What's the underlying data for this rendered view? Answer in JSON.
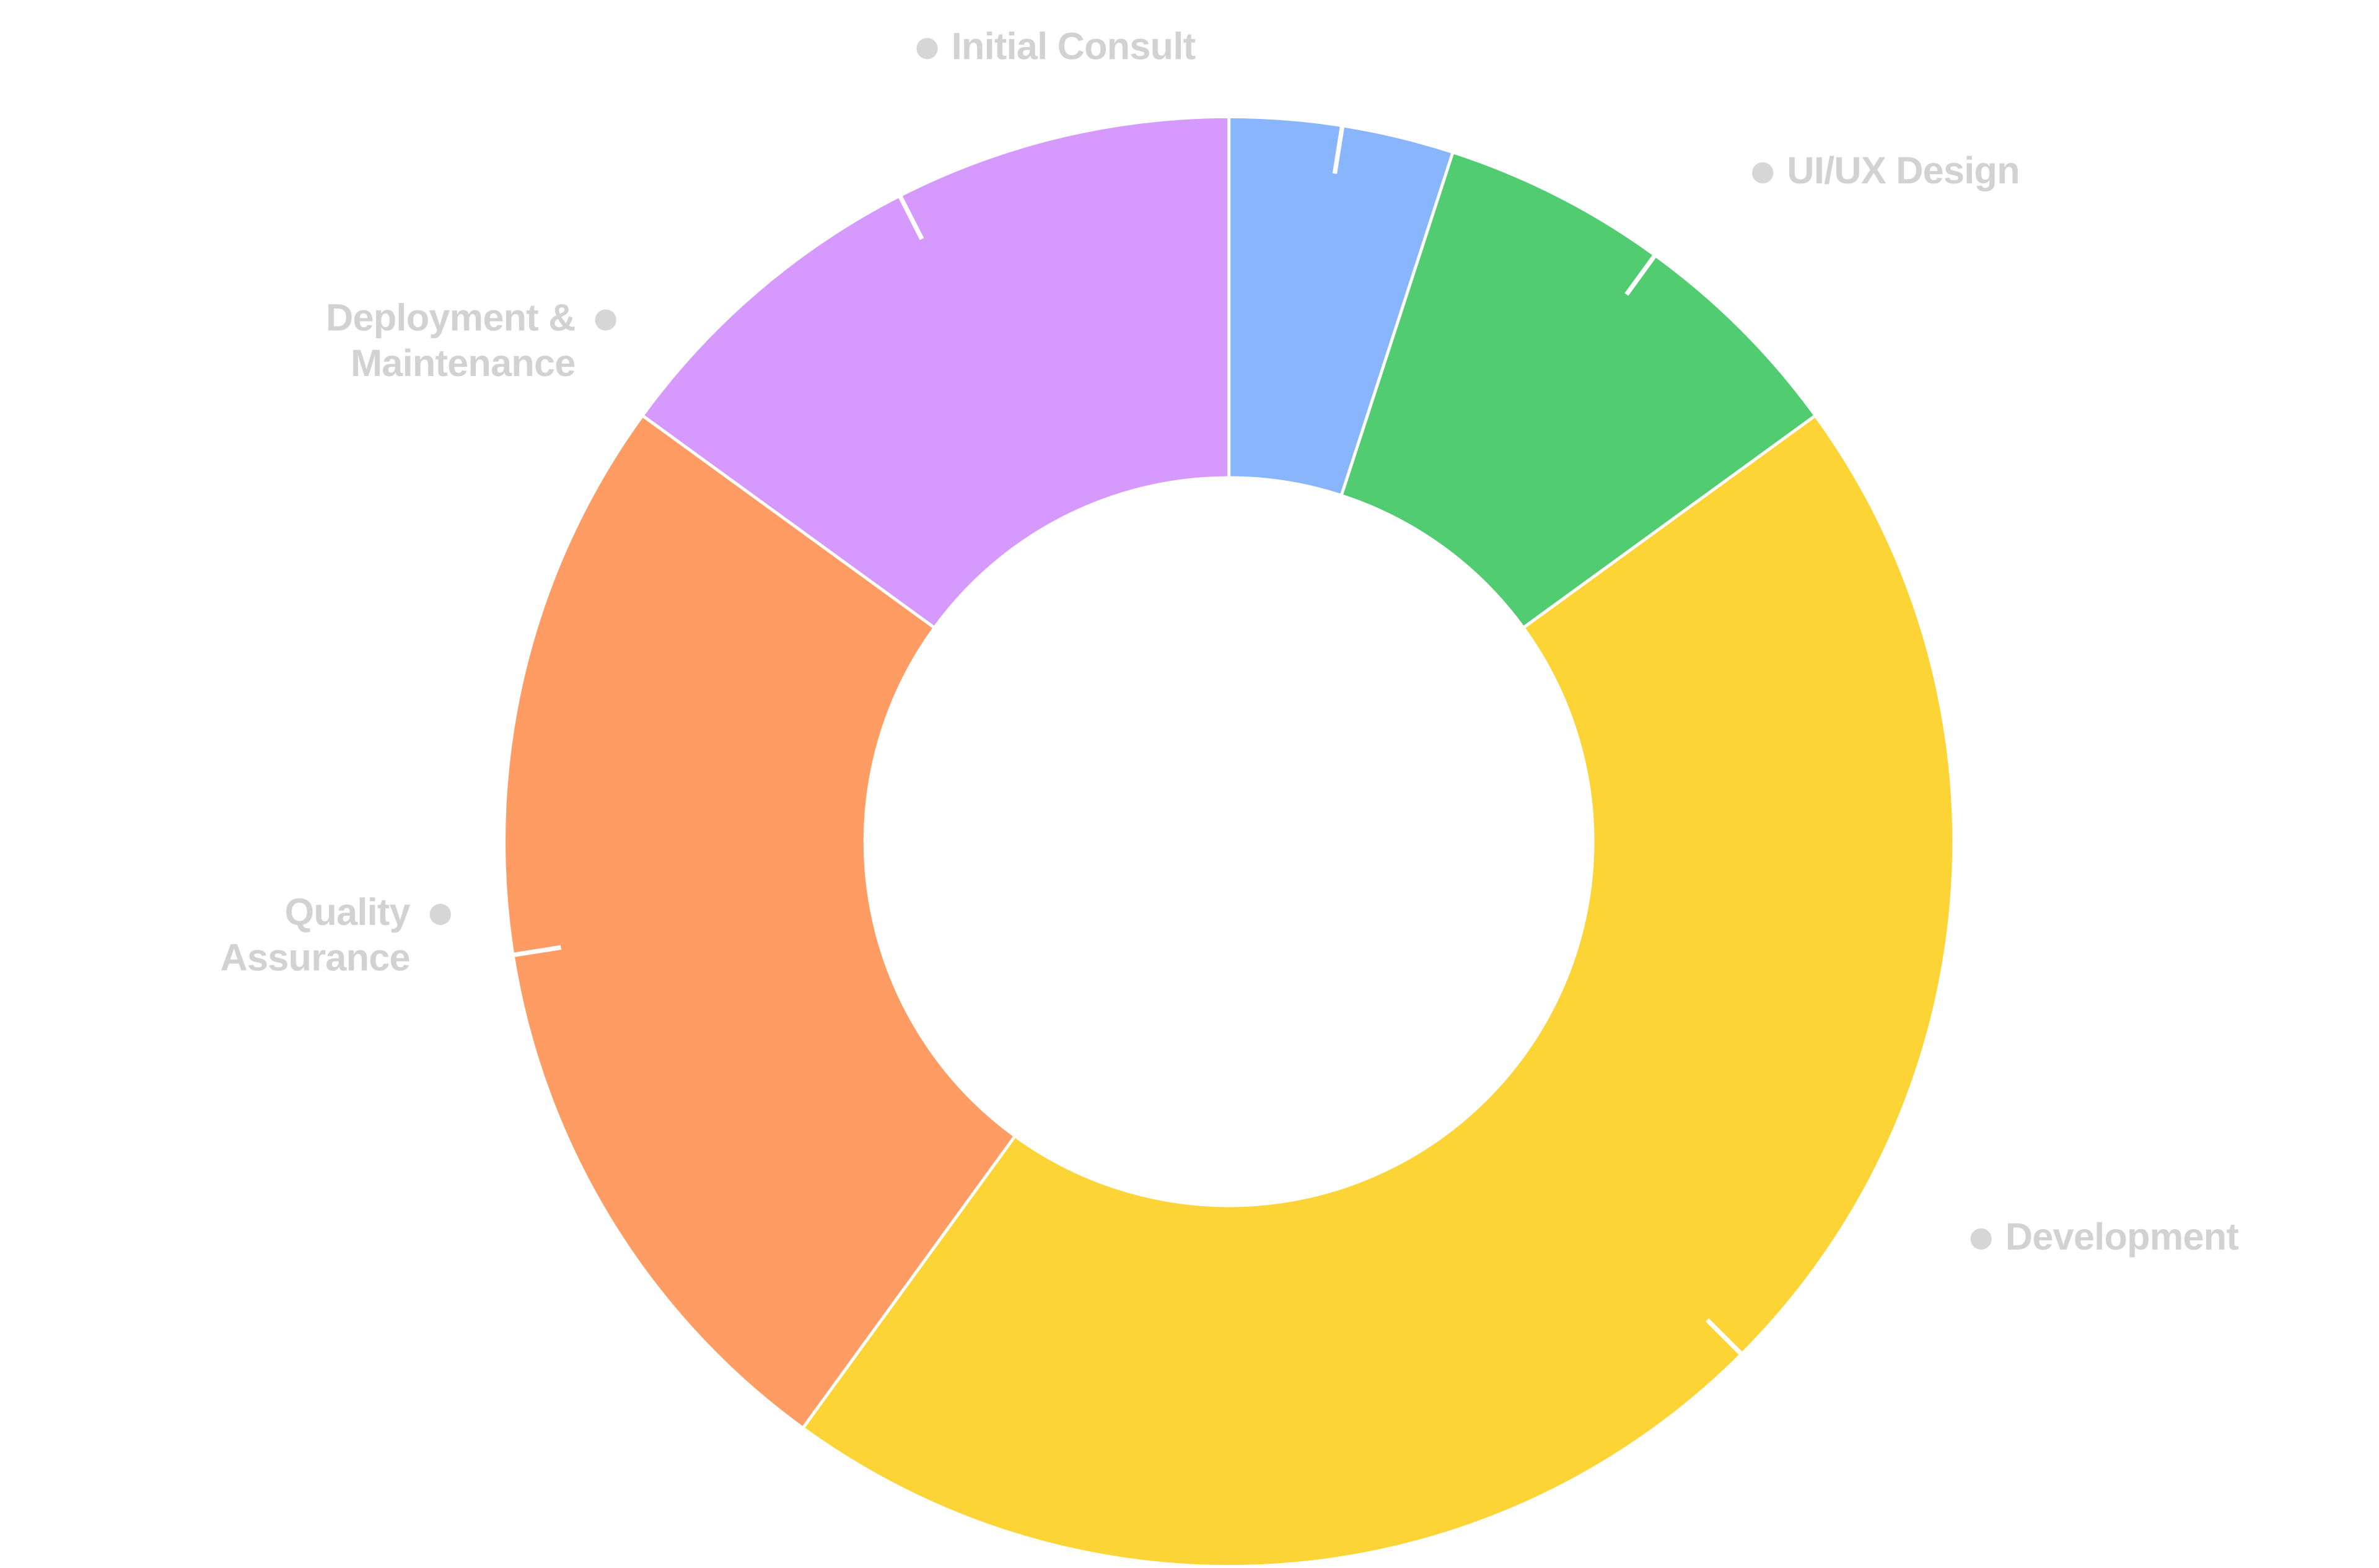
{
  "chart_data": {
    "type": "donut",
    "categories": [
      "Initial Consult",
      "UI/UX Design",
      "Development",
      "Quality Assurance",
      "Deployment & Maintenance"
    ],
    "values": [
      5,
      10,
      45,
      25,
      15
    ],
    "colors": [
      "#89b5fd",
      "#52cc70",
      "#fdd435",
      "#fe9c63",
      "#d69afe"
    ]
  }
}
